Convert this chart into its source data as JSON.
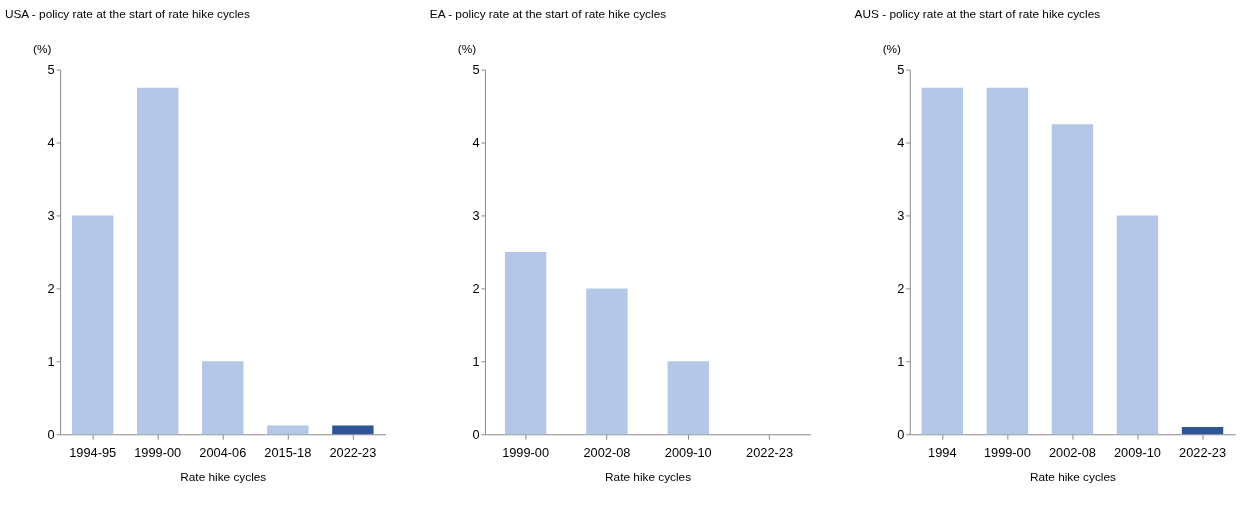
{
  "chart_data": [
    {
      "type": "bar",
      "title": "USA - policy rate at the start of rate hike cycles",
      "ylabel": "(%)",
      "xlabel": "Rate hike cycles",
      "categories": [
        "1994-95",
        "1999-00",
        "2004-06",
        "2015-18",
        "2022-23"
      ],
      "values": [
        3,
        4.75,
        1,
        0.12,
        0.12
      ],
      "colors": [
        "#b4c7e7",
        "#b4c7e7",
        "#b4c7e7",
        "#b4c7e7",
        "#2f5597"
      ],
      "ylim": [
        0,
        5
      ],
      "yticks": [
        0,
        1,
        2,
        3,
        4,
        5
      ]
    },
    {
      "type": "bar",
      "title": "EA - policy rate at the start of rate hike cycles",
      "ylabel": "(%)",
      "xlabel": "Rate hike cycles",
      "categories": [
        "1999-00",
        "2002-08",
        "2009-10",
        "2022-23"
      ],
      "values": [
        2.5,
        2,
        1,
        0
      ],
      "colors": [
        "#b4c7e7",
        "#b4c7e7",
        "#b4c7e7",
        "#2f5597"
      ],
      "ylim": [
        0,
        5
      ],
      "yticks": [
        0,
        1,
        2,
        3,
        4,
        5
      ]
    },
    {
      "type": "bar",
      "title": "AUS - policy rate at the start of rate hike cycles",
      "ylabel": "(%)",
      "xlabel": "Rate hike cycles",
      "categories": [
        "1994",
        "1999-00",
        "2002-08",
        "2009-10",
        "2022-23"
      ],
      "values": [
        4.75,
        4.75,
        4.25,
        3,
        0.1
      ],
      "colors": [
        "#b4c7e7",
        "#b4c7e7",
        "#b4c7e7",
        "#b4c7e7",
        "#2f5597"
      ],
      "ylim": [
        0,
        5
      ],
      "yticks": [
        0,
        1,
        2,
        3,
        4,
        5
      ]
    }
  ]
}
